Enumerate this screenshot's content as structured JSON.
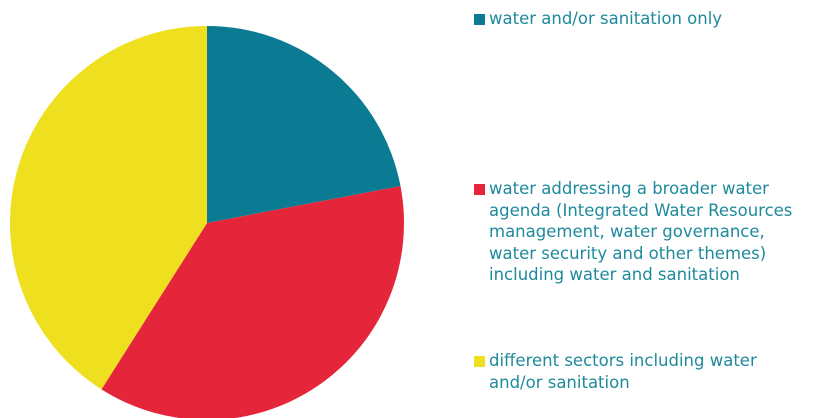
{
  "chart_data": {
    "type": "pie",
    "title": "",
    "slices": [
      {
        "label": "water and/or sanitation only",
        "value": 22,
        "color": "#0a7b92"
      },
      {
        "label": "water addressing a broader water agenda (Integrated Water Resources management, water governance, water security and other themes) including water and sanitation",
        "value": 37,
        "color": "#e5263a"
      },
      {
        "label": "different sectors including water and/or sanitation",
        "value": 41,
        "color": "#efe01f"
      }
    ],
    "start": "12 o'clock",
    "direction": "clockwise",
    "legend_position": "right"
  },
  "legend": {
    "items": [
      {
        "text": "water and/or sanitation only",
        "color": "#0a7b92"
      },
      {
        "text": "water addressing a broader water\nagenda (Integrated Water Resources\nmanagement, water governance,\nwater security and other themes)\nincluding water and sanitation",
        "color": "#e5263a"
      },
      {
        "text": "different sectors including water\nand/or sanitation",
        "color": "#efe01f"
      }
    ]
  }
}
